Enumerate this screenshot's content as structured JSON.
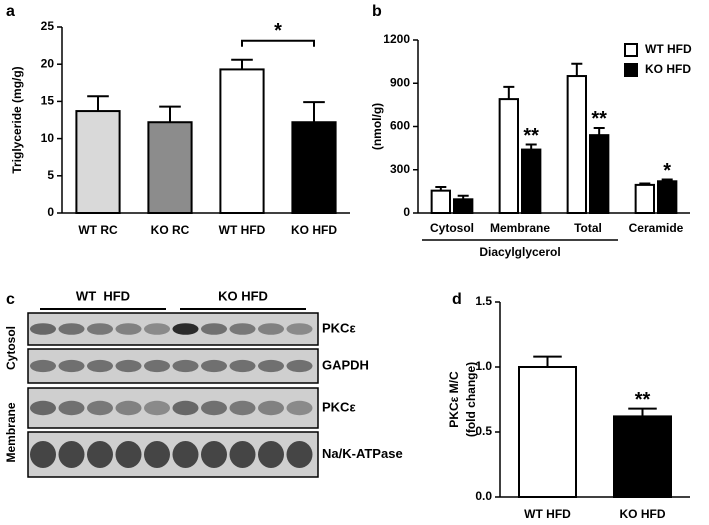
{
  "chart_data": [
    {
      "type": "bar",
      "panel": "a",
      "ylabel": "Triglyceride (mg/g)",
      "categories": [
        "WT RC",
        "KO RC",
        "WT HFD",
        "KO HFD"
      ],
      "values": [
        13.7,
        12.2,
        19.3,
        12.2
      ],
      "errors": [
        2.0,
        2.1,
        1.3,
        2.7
      ],
      "colors": [
        "#d9d9d9",
        "#8c8c8c",
        "#ffffff",
        "#000000"
      ],
      "ylim": [
        0,
        25
      ],
      "yticks": [
        0,
        5,
        10,
        15,
        20,
        25
      ],
      "bracket": {
        "label": "*",
        "between": [
          2,
          3
        ]
      }
    },
    {
      "type": "grouped_bar",
      "panel": "b",
      "ylabel": "(nmol/g)",
      "categories": [
        "Cytosol",
        "Membrane",
        "Total",
        "Ceramide"
      ],
      "group": {
        "label": "Diacylglycerol",
        "categories": [
          0,
          1,
          2
        ]
      },
      "series": [
        {
          "name": "WT HFD",
          "color": "#ffffff",
          "values": [
            155,
            790,
            950,
            195
          ],
          "errors": [
            25,
            85,
            85,
            10
          ]
        },
        {
          "name": "KO HFD",
          "color": "#000000",
          "values": [
            95,
            440,
            540,
            220
          ],
          "errors": [
            25,
            35,
            50,
            12
          ],
          "significance": [
            null,
            "**",
            "**",
            "*"
          ]
        }
      ],
      "ylim": [
        0,
        1200
      ],
      "yticks": [
        0,
        300,
        600,
        900,
        1200
      ],
      "legend": "top-right"
    },
    {
      "type": "bar",
      "panel": "d",
      "ylabel": [
        "PKCε M/C",
        "(fold change)"
      ],
      "categories": [
        "WT HFD",
        "KO HFD"
      ],
      "values": [
        1.0,
        0.62
      ],
      "errors": [
        0.08,
        0.06
      ],
      "colors": [
        "#ffffff",
        "#000000"
      ],
      "significance": [
        null,
        "**"
      ],
      "ylim": [
        0,
        1.5
      ],
      "yticks": [
        {
          "value": 0,
          "label": "0.0"
        },
        0.5,
        {
          "value": 1,
          "label": "1.0"
        },
        1.5
      ]
    }
  ],
  "blot": {
    "panel": "c",
    "groups": [
      "WT  HFD",
      "KO HFD"
    ],
    "sections": [
      "Cytosol",
      "Membrane"
    ],
    "bands": [
      "PKCε",
      "GAPDH",
      "PKCε",
      "Na/K-ATPase"
    ]
  }
}
